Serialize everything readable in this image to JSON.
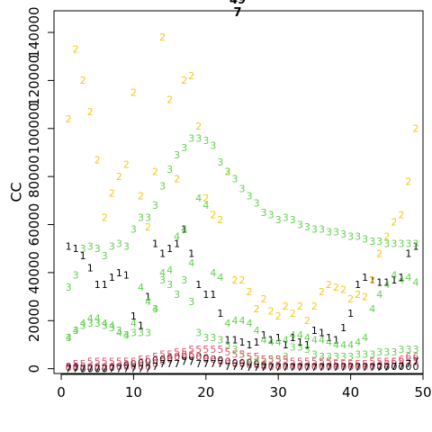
{
  "chart_data": {
    "type": "scatter",
    "title": "",
    "xlabel": "",
    "ylabel": "CC",
    "xlim": [
      -1,
      50
    ],
    "ylim": [
      -2000,
      149000
    ],
    "x_ticks": [
      0,
      10,
      20,
      30,
      40,
      50
    ],
    "y_ticks": [
      0,
      20000,
      40000,
      60000,
      80000,
      100000,
      120000,
      140000
    ],
    "grid": false,
    "legend": "none",
    "top_labels": [
      "49",
      "7"
    ],
    "x": [
      1,
      2,
      3,
      4,
      5,
      6,
      7,
      8,
      9,
      10,
      11,
      12,
      13,
      14,
      15,
      16,
      17,
      18,
      19,
      20,
      21,
      22,
      23,
      24,
      25,
      26,
      27,
      28,
      29,
      30,
      31,
      32,
      33,
      34,
      35,
      36,
      37,
      38,
      39,
      40,
      41,
      42,
      43,
      44,
      45,
      46,
      47,
      48,
      49
    ],
    "series": [
      {
        "name": "0",
        "marker": "0",
        "color": "#000000",
        "values": [
          500,
          500,
          0,
          0,
          0,
          0,
          500,
          1000,
          1500,
          2000,
          2500,
          3000,
          3500,
          4000,
          4500,
          5000,
          5000,
          5000,
          5000,
          4500,
          4000,
          3500,
          3000,
          2500,
          2500,
          2500,
          2000,
          1500,
          1000,
          1000,
          1000,
          1000,
          1000,
          1000,
          1000,
          1000,
          1000,
          1000,
          1000,
          1000,
          1000,
          1000,
          1000,
          1000,
          1000,
          1000,
          1000,
          1000,
          1000
        ]
      },
      {
        "name": "1",
        "marker": "1",
        "color": "#000000",
        "values": [
          51000,
          50000,
          47000,
          42000,
          35000,
          35000,
          38000,
          40000,
          39000,
          22000,
          18000,
          30000,
          52000,
          48000,
          50000,
          52000,
          58000,
          48000,
          35000,
          31000,
          31000,
          23000,
          12000,
          12000,
          11000,
          10000,
          11000,
          14000,
          12000,
          13000,
          10000,
          13000,
          11000,
          10000,
          16000,
          15000,
          13000,
          12000,
          17000,
          23000,
          35000,
          38000,
          37000,
          36000,
          36000,
          37000,
          38000,
          48000,
          51000
        ]
      },
      {
        "name": "2",
        "marker": "2",
        "color": "#F5C710",
        "values": [
          104000,
          133000,
          120000,
          107000,
          87000,
          63000,
          73000,
          80000,
          85000,
          115000,
          72000,
          59000,
          82000,
          138000,
          112000,
          79000,
          120000,
          122000,
          101000,
          71000,
          64000,
          62000,
          82000,
          37000,
          37000,
          32000,
          25000,
          29000,
          24000,
          22000,
          26000,
          23000,
          26000,
          20000,
          26000,
          32000,
          35000,
          34000,
          33000,
          29000,
          31000,
          30000,
          37000,
          48000,
          55000,
          61000,
          64000,
          78000,
          100000
        ]
      },
      {
        "name": "3",
        "marker": "3",
        "color": "#61D04F",
        "values": [
          13000,
          16000,
          18000,
          19000,
          19000,
          18000,
          17000,
          16000,
          14000,
          15000,
          15000,
          15000,
          25000,
          37000,
          35000,
          31000,
          37000,
          28000,
          15000,
          13000,
          13000,
          12000,
          10000,
          8000,
          6000,
          4000,
          3000,
          3000,
          4000,
          4000,
          5000,
          9000,
          9000,
          8000,
          6000,
          5000,
          5000,
          5000,
          5000,
          5000,
          6000,
          6000,
          6000,
          7000,
          7000,
          7000,
          8000,
          8000,
          8000
        ]
      },
      {
        "name": "4",
        "marker": "4",
        "color": "#61D04F",
        "values": [
          13000,
          16000,
          19000,
          21000,
          21000,
          19000,
          18000,
          15000,
          14000,
          19000,
          34000,
          28000,
          25000,
          40000,
          41000,
          55000,
          58000,
          44000,
          71000,
          68000,
          40000,
          38000,
          19000,
          20000,
          20000,
          19000,
          16000,
          12000,
          11000,
          11000,
          12000,
          14000,
          14000,
          13000,
          12000,
          12000,
          11000,
          10000,
          10000,
          10000,
          11000,
          13000,
          25000,
          31000,
          35000,
          39000,
          37000,
          38000,
          36000
        ]
      },
      {
        "name": "5",
        "marker": "5",
        "color": "#DF536B",
        "values": [
          1000,
          2000,
          2000,
          3000,
          3000,
          3000,
          3000,
          3000,
          3000,
          3000,
          4000,
          4000,
          5000,
          6000,
          6000,
          7000,
          7000,
          8000,
          8000,
          8000,
          8000,
          8000,
          7000,
          6000,
          6000,
          5000,
          5000,
          4000,
          4000,
          4000,
          4000,
          3000,
          3000,
          3000,
          3000,
          3000,
          3000,
          2000,
          2000,
          2000,
          2000,
          2000,
          3000,
          3000,
          3000,
          3000,
          3000,
          3000,
          3000
        ]
      },
      {
        "name": "6",
        "marker": "6",
        "color": "#DF536B",
        "values": [
          500,
          1000,
          1000,
          1000,
          1000,
          1000,
          1000,
          1000,
          1000,
          1000,
          1000,
          1000,
          2000,
          3000,
          4000,
          5000,
          6000,
          6000,
          5000,
          4000,
          4000,
          3000,
          3000,
          2000,
          2000,
          1500,
          1500,
          1000,
          1000,
          1000,
          1000,
          1000,
          1000,
          1000,
          1000,
          1000,
          1000,
          1000,
          1000,
          1000,
          1000,
          1000,
          1000,
          1500,
          2000,
          3000,
          4000,
          5000,
          5000
        ]
      },
      {
        "name": "7",
        "marker": "7",
        "color": "#000000",
        "values": [
          0,
          0,
          0,
          0,
          0,
          0,
          0,
          0,
          0,
          0,
          0,
          0,
          1000,
          2000,
          2000,
          2000,
          3000,
          3000,
          2000,
          2000,
          2000,
          2000,
          1000,
          1000,
          1000,
          500,
          500,
          500,
          500,
          500,
          500,
          500,
          500,
          500,
          500,
          500,
          500,
          500,
          500,
          500,
          500,
          500,
          500,
          500,
          500,
          1000,
          1000,
          2000,
          3000
        ]
      },
      {
        "name": "3b",
        "marker": "3",
        "color": "#61D04F",
        "values": [
          34000,
          39000,
          50000,
          51000,
          50000,
          47000,
          51000,
          52000,
          51000,
          58000,
          63000,
          63000,
          68000,
          76000,
          83000,
          89000,
          92000,
          96000,
          96000,
          95000,
          93000,
          86000,
          82000,
          79000,
          75000,
          72000,
          69000,
          65000,
          64000,
          62000,
          63000,
          62000,
          60000,
          59000,
          58000,
          58000,
          57000,
          57000,
          56000,
          55000,
          55000,
          54000,
          53000,
          53000,
          52000,
          52000,
          52000,
          52000,
          52000
        ]
      }
    ]
  }
}
